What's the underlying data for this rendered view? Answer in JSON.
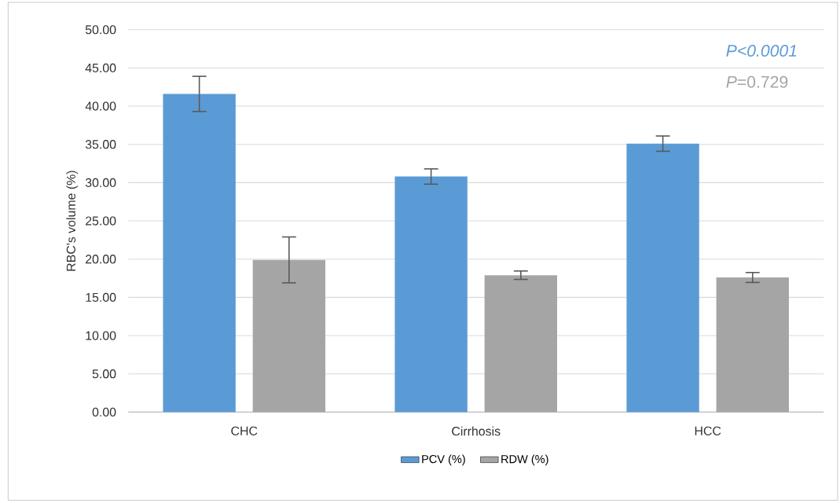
{
  "chart_data": {
    "type": "bar",
    "ylabel": "RBC's volume (%)",
    "categories": [
      "CHC",
      "Cirrhosis",
      "HCC"
    ],
    "series": [
      {
        "name": "PCV (%)",
        "color": "#5b9bd5",
        "values": [
          41.6,
          30.8,
          35.1
        ],
        "errors": [
          2.3,
          1.0,
          1.0
        ]
      },
      {
        "name": "RDW (%)",
        "color": "#a5a5a5",
        "values": [
          19.9,
          17.9,
          17.6
        ],
        "errors": [
          3.0,
          0.55,
          0.65
        ]
      }
    ],
    "ylim": [
      0,
      50
    ],
    "yticks": [
      {
        "value": 0,
        "label": "0.00"
      },
      {
        "value": 5,
        "label": "5.00"
      },
      {
        "value": 10,
        "label": "10.00"
      },
      {
        "value": 15,
        "label": "15.00"
      },
      {
        "value": 20,
        "label": "20.00"
      },
      {
        "value": 25,
        "label": "25.00"
      },
      {
        "value": 30,
        "label": "30.00"
      },
      {
        "value": 35,
        "label": "35.00"
      },
      {
        "value": 40,
        "label": "40.00"
      },
      {
        "value": 45,
        "label": "45.00"
      },
      {
        "value": 50,
        "label": "50.00"
      }
    ],
    "grid": "y",
    "legend": "bottom",
    "annotations": [
      "P<0.0001",
      "*P*=0.729"
    ]
  }
}
